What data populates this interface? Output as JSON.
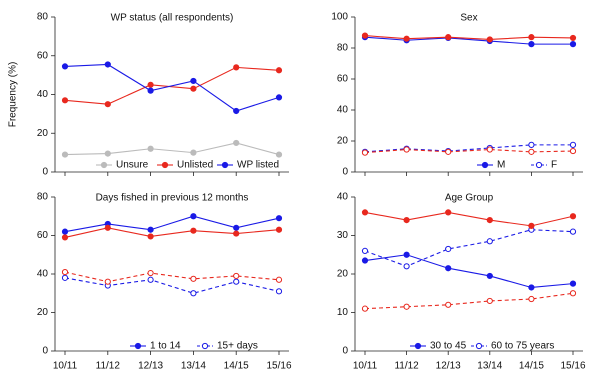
{
  "chart_data": [
    {
      "type": "line",
      "title": "WP status (all respondents)",
      "ylabel": "Frequency (%)",
      "ylim": [
        0,
        80
      ],
      "yticks": [
        0,
        20,
        40,
        60,
        80
      ],
      "categories": [
        "10/11",
        "11/12",
        "12/13",
        "13/14",
        "14/15",
        "15/16"
      ],
      "legend": "bottom",
      "series": [
        {
          "name": "Unsure",
          "color": "#bbbbbb",
          "marker": "filled",
          "dash": false,
          "values": [
            9,
            9.5,
            12,
            10,
            15,
            9
          ]
        },
        {
          "name": "Unlisted",
          "color": "#e8281e",
          "marker": "filled",
          "dash": false,
          "values": [
            37,
            35,
            45,
            43,
            54,
            52.5
          ]
        },
        {
          "name": "WP listed",
          "color": "#1a1ae6",
          "marker": "filled",
          "dash": false,
          "values": [
            54.5,
            55.5,
            42,
            47,
            31.5,
            38.5
          ]
        }
      ]
    },
    {
      "type": "line",
      "title": "Sex",
      "ylabel": "",
      "ylim": [
        0,
        100
      ],
      "yticks": [
        0,
        20,
        40,
        60,
        80,
        100
      ],
      "categories": [
        "10/11",
        "11/12",
        "12/13",
        "13/14",
        "14/15",
        "15/16"
      ],
      "legend": "bottom",
      "series": [
        {
          "name": "M",
          "color": "#1a1ae6",
          "marker": "filled",
          "dash": false,
          "values": [
            87,
            85,
            86.5,
            84.5,
            82.5,
            82.5
          ]
        },
        {
          "name": "F",
          "color": "#1a1ae6",
          "marker": "open",
          "dash": true,
          "values": [
            13,
            15,
            13.5,
            15.5,
            17.5,
            17.5
          ]
        },
        {
          "name": "",
          "color": "#e8281e",
          "marker": "filled",
          "dash": false,
          "values": [
            88,
            86,
            87,
            85.5,
            87,
            86.5
          ]
        },
        {
          "name": "",
          "color": "#e8281e",
          "marker": "open",
          "dash": true,
          "values": [
            12.5,
            14.5,
            13,
            14.5,
            13,
            13.5
          ]
        }
      ]
    },
    {
      "type": "line",
      "title": "Days fished in previous 12 months",
      "ylabel": "",
      "ylim": [
        0,
        80
      ],
      "yticks": [
        0,
        20,
        40,
        60,
        80
      ],
      "categories": [
        "10/11",
        "11/12",
        "12/13",
        "13/14",
        "14/15",
        "15/16"
      ],
      "legend": "bottom",
      "series": [
        {
          "name": "1 to 14",
          "color": "#1a1ae6",
          "marker": "filled",
          "dash": false,
          "values": [
            62,
            66,
            63,
            70,
            64,
            69
          ]
        },
        {
          "name": "15+ days",
          "color": "#1a1ae6",
          "marker": "open",
          "dash": true,
          "values": [
            38,
            34,
            37,
            30,
            36,
            31
          ]
        },
        {
          "name": "",
          "color": "#e8281e",
          "marker": "filled",
          "dash": false,
          "values": [
            59,
            64,
            59.5,
            62.5,
            61,
            63
          ]
        },
        {
          "name": "",
          "color": "#e8281e",
          "marker": "open",
          "dash": true,
          "values": [
            41,
            36,
            40.5,
            37.5,
            39,
            37
          ]
        }
      ]
    },
    {
      "type": "line",
      "title": "Age Group",
      "ylabel": "",
      "ylim": [
        0,
        40
      ],
      "yticks": [
        0,
        10,
        20,
        30,
        40
      ],
      "categories": [
        "10/11",
        "11/12",
        "12/13",
        "13/14",
        "14/15",
        "15/16"
      ],
      "legend": "bottom",
      "series": [
        {
          "name": "30 to 45",
          "color": "#1a1ae6",
          "marker": "filled",
          "dash": false,
          "values": [
            23.5,
            25,
            21.5,
            19.5,
            16.5,
            17.5
          ]
        },
        {
          "name": "60 to 75 years",
          "color": "#1a1ae6",
          "marker": "open",
          "dash": true,
          "values": [
            26,
            22,
            26.5,
            28.5,
            31.5,
            31
          ]
        },
        {
          "name": "",
          "color": "#e8281e",
          "marker": "filled",
          "dash": false,
          "values": [
            36,
            34,
            36,
            34,
            32.5,
            35
          ]
        },
        {
          "name": "",
          "color": "#e8281e",
          "marker": "open",
          "dash": true,
          "values": [
            11,
            11.5,
            12,
            13,
            13.5,
            15
          ]
        }
      ]
    }
  ]
}
